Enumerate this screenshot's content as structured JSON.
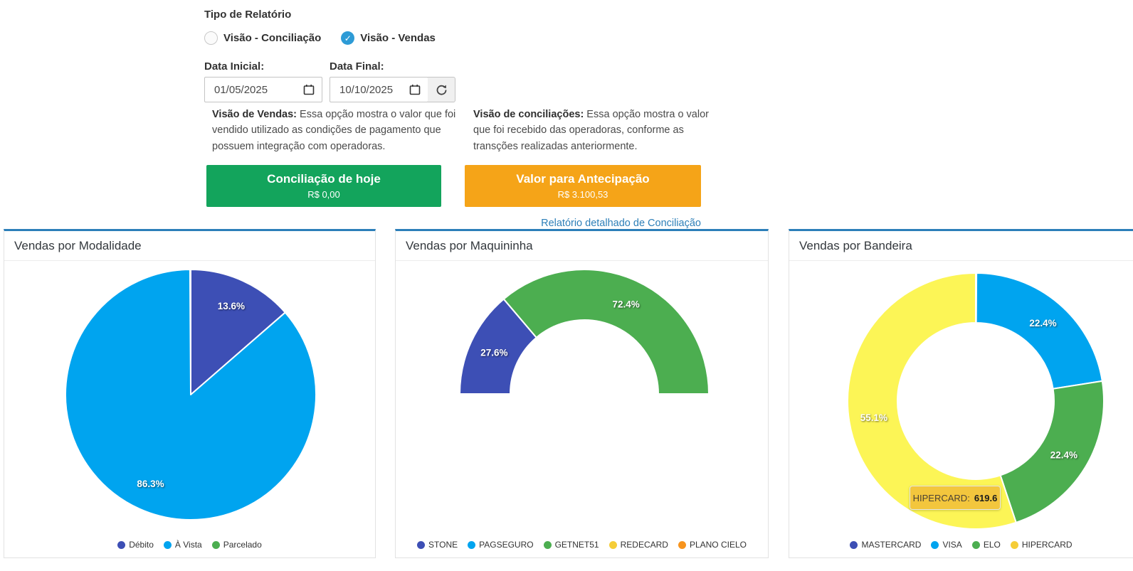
{
  "form": {
    "section_title": "Tipo de Relatório",
    "radios": [
      {
        "label": "Visão - Conciliação",
        "checked": false
      },
      {
        "label": "Visão - Vendas",
        "checked": true
      }
    ],
    "check_glyph": "✓",
    "date_initial_label": "Data Inicial:",
    "date_final_label": "Data Final:",
    "date_initial_value": "01/05/2025",
    "date_final_value": "10/10/2025",
    "info_vendas": {
      "lead": "Visão de Vendas:",
      "text": " Essa opção mostra o valor que foi vendido utilizado as condições de pagamento que possuem integração com operadoras."
    },
    "info_conciliacoes": {
      "lead": "Visão de conciliações:",
      "text": " Essa opção mostra o valor que foi recebido das operadoras, conforme as transções realizadas anteriormente."
    },
    "green_card": {
      "title": "Conciliação de hoje",
      "value": "R$ 0,00",
      "color": "#13a45c"
    },
    "orange_card": {
      "title": "Valor para Antecipação",
      "value": "R$ 3.100,53",
      "color": "#f5a418"
    },
    "detail_link": "Relatório detalhado de Conciliação"
  },
  "colors": {
    "panel_top_border": "#2c7fb9",
    "link": "#2d7fb8",
    "checked_radio": "#2d9bd6"
  },
  "chart_data": [
    {
      "type": "pie",
      "title": "Vendas por Modalidade",
      "legend_position": "bottom",
      "series": [
        {
          "name": "Débito",
          "value": 13.6,
          "label": "13.6%",
          "color": "#3d4fb5"
        },
        {
          "name": "À Vista",
          "value": 86.3,
          "label": "86.3%",
          "color": "#00a4ef"
        },
        {
          "name": "Parcelado",
          "value": 0.1,
          "label": null,
          "color": "#4cae50"
        }
      ]
    },
    {
      "type": "donut-semicircle",
      "title": "Vendas por Maquininha",
      "legend_position": "bottom",
      "series": [
        {
          "name": "STONE",
          "value": 27.6,
          "label": "27.6%",
          "color": "#3d4fb5"
        },
        {
          "name": "PAGSEGURO",
          "value": 0,
          "label": null,
          "color": "#00a4ef"
        },
        {
          "name": "GETNET51",
          "value": 72.4,
          "label": "72.4%",
          "color": "#4cae50"
        },
        {
          "name": "REDECARD",
          "value": 0,
          "label": null,
          "color": "#f5cd38"
        },
        {
          "name": "PLANO CIELO",
          "value": 0,
          "label": null,
          "color": "#f7941e"
        }
      ]
    },
    {
      "type": "donut",
      "title": "Vendas por Bandeira",
      "legend_position": "bottom",
      "series": [
        {
          "name": "MASTERCARD",
          "value": 0.1,
          "label": null,
          "color": "#3d4fb5"
        },
        {
          "name": "VISA",
          "value": 22.4,
          "label": "22.4%",
          "color": "#00a4ef"
        },
        {
          "name": "ELO",
          "value": 22.4,
          "label": "22.4%",
          "color": "#4cae50"
        },
        {
          "name": "HIPERCARD",
          "value": 55.1,
          "label": "55.1%",
          "color": "#fcf556",
          "legend_color": "#f5cd38"
        }
      ],
      "tooltip": {
        "label": "HIPERCARD:",
        "value": "619.6"
      }
    }
  ]
}
